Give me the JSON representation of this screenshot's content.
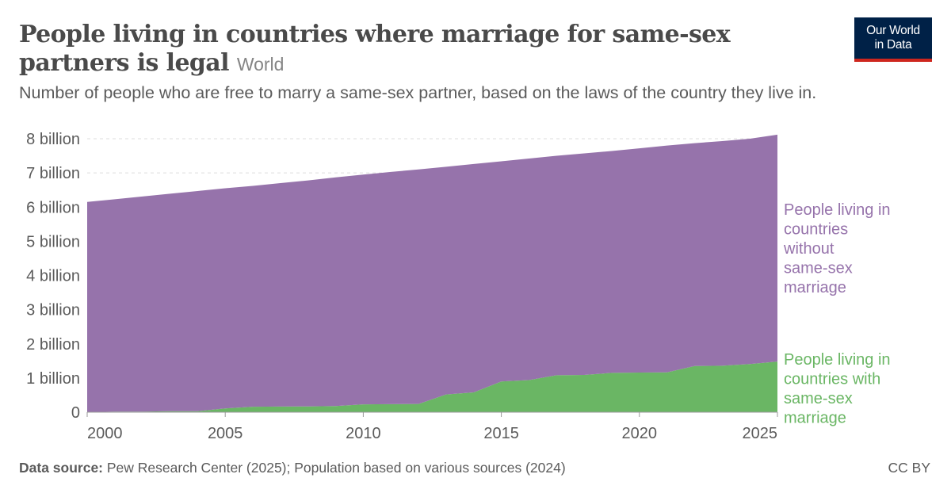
{
  "header": {
    "title": "People living in countries where marriage for same-sex partners is legal",
    "entity": "World",
    "subtitle": "Number of people who are free to marry a same-sex partner, based on the laws of the country they live in."
  },
  "logo": {
    "line1": "Our World",
    "line2": "in Data",
    "bg_color": "#002147",
    "accent_color": "#ce261e"
  },
  "footer": {
    "source_label": "Data source:",
    "source_text": " Pew Research Center (2025); Population based on various sources (2024)",
    "license": "CC BY"
  },
  "chart_data": {
    "type": "area",
    "stacked": true,
    "x_unit": "year",
    "xlim": [
      2000,
      2025
    ],
    "ylim": [
      0,
      8000000000
    ],
    "x_ticks": [
      2000,
      2005,
      2010,
      2015,
      2020,
      2025
    ],
    "y_ticks": [
      0,
      1000000000,
      2000000000,
      3000000000,
      4000000000,
      5000000000,
      6000000000,
      7000000000,
      8000000000
    ],
    "y_tick_labels": [
      "0",
      "1 billion",
      "2 billion",
      "3 billion",
      "4 billion",
      "5 billion",
      "6 billion",
      "7 billion",
      "8 billion"
    ],
    "grid": "horizontal dashed",
    "legend": "right",
    "x": [
      2000,
      2001,
      2002,
      2003,
      2004,
      2005,
      2006,
      2007,
      2008,
      2009,
      2010,
      2011,
      2012,
      2013,
      2014,
      2015,
      2016,
      2017,
      2018,
      2019,
      2020,
      2021,
      2022,
      2023,
      2024,
      2025
    ],
    "series": [
      {
        "name": "People living in countries with same-sex marriage",
        "label_lines": [
          "People living in",
          "countries with",
          "same-sex",
          "marriage"
        ],
        "color": "#6ab664",
        "values": [
          0,
          16000000,
          16000000,
          30000000,
          30000000,
          110000000,
          160000000,
          165000000,
          168000000,
          180000000,
          230000000,
          235000000,
          240000000,
          520000000,
          580000000,
          900000000,
          940000000,
          1080000000,
          1090000000,
          1150000000,
          1160000000,
          1165000000,
          1350000000,
          1360000000,
          1410000000,
          1480000000
        ]
      },
      {
        "name": "People living in countries without same-sex marriage",
        "label_lines": [
          "People living in",
          "countries",
          "without",
          "same-sex",
          "marriage"
        ],
        "color": "#9673ab",
        "values": [
          6150000000,
          6214000000,
          6294000000,
          6360000000,
          6440000000,
          6440000000,
          6460000000,
          6535000000,
          6612000000,
          6690000000,
          6720000000,
          6795000000,
          6860000000,
          6660000000,
          6680000000,
          6440000000,
          6480000000,
          6420000000,
          6480000000,
          6490000000,
          6560000000,
          6635000000,
          6520000000,
          6570000000,
          6590000000,
          6640000000
        ]
      }
    ]
  }
}
